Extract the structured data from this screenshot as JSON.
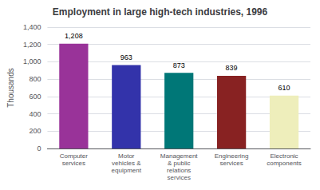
{
  "chart_data": {
    "type": "bar",
    "title": "Employment in large high-tech industries, 1996",
    "categories": [
      "Computer\nservices",
      "Motor\nvehicles &\nequipment",
      "Management\n& public\nrelations\nservices",
      "Engineering\nservices",
      "Electronic\ncomponents"
    ],
    "values": [
      1208,
      963,
      873,
      839,
      610
    ],
    "value_labels": [
      "1,208",
      "963",
      "873",
      "839",
      "610"
    ],
    "colors": [
      "#993399",
      "#3333aa",
      "#007777",
      "#882222",
      "#eeeebb"
    ],
    "ylabel": "Thousands",
    "ylim": [
      0,
      1400
    ],
    "yticks": [
      0,
      200,
      400,
      600,
      800,
      {
        "value": 1000,
        "label": "1,000"
      },
      {
        "value": 1200,
        "label": "1,200"
      },
      {
        "value": 1400,
        "label": "1,400"
      }
    ],
    "grid": true,
    "data_labels": true
  }
}
